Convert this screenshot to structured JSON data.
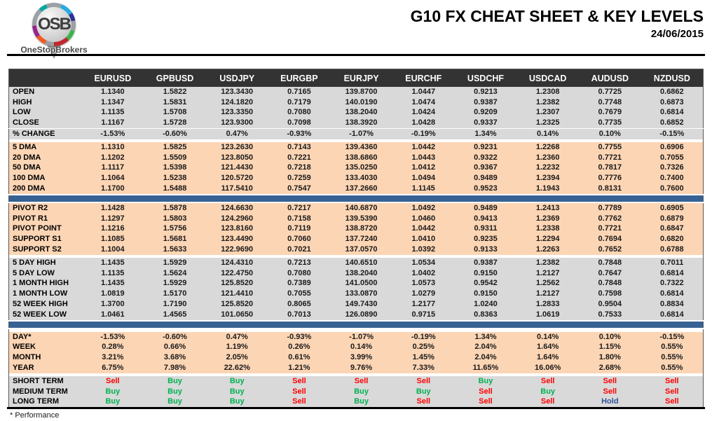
{
  "page": {
    "logo": {
      "letters": "OSB",
      "name": "OneStopBrokers"
    },
    "title": "G10 FX CHEAT SHEET & KEY LEVELS",
    "date": "24/06/2015",
    "footnote": "* Performance"
  },
  "colors": {
    "header_bg": "#333333",
    "gray_band": "#D9D9D9",
    "peach_band": "#FCD5B4",
    "blue_bar": "#376293",
    "buy": "#00B050",
    "sell": "#FF0000",
    "hold": "#2F5496",
    "pivot_r": "#00B050",
    "pivot_point": "#17375E",
    "support": "#FF0000"
  },
  "table": {
    "columns": [
      "EURUSD",
      "GPBUSD",
      "USDJPY",
      "EURGBP",
      "EURJPY",
      "EURCHF",
      "USDCHF",
      "USDCAD",
      "AUDUSD",
      "NZDUSD"
    ],
    "sections": [
      {
        "id": "daily_ohlc",
        "bg": "gray",
        "before": [],
        "rows": [
          {
            "label": "OPEN",
            "values": [
              "1.1340",
              "1.5822",
              "123.3430",
              "0.7165",
              "139.8700",
              "1.0447",
              "0.9213",
              "1.2308",
              "0.7725",
              "0.6862"
            ]
          },
          {
            "label": "HIGH",
            "values": [
              "1.1347",
              "1.5831",
              "124.1820",
              "0.7179",
              "140.0190",
              "1.0474",
              "0.9387",
              "1.2382",
              "0.7748",
              "0.6873"
            ]
          },
          {
            "label": "LOW",
            "values": [
              "1.1135",
              "1.5708",
              "123.3350",
              "0.7080",
              "138.2040",
              "1.0424",
              "0.9209",
              "1.2307",
              "0.7679",
              "0.6814"
            ]
          },
          {
            "label": "CLOSE",
            "values": [
              "1.1167",
              "1.5728",
              "123.9300",
              "0.7098",
              "138.3920",
              "1.0428",
              "0.9337",
              "1.2325",
              "0.7735",
              "0.6852"
            ]
          },
          {
            "label": "% CHANGE",
            "hairline": true,
            "values": [
              "-1.53%",
              "-0.60%",
              "0.47%",
              "-0.93%",
              "-1.07%",
              "-0.19%",
              "1.34%",
              "0.14%",
              "0.10%",
              "-0.15%"
            ]
          }
        ]
      },
      {
        "id": "moving_averages",
        "bg": "peach",
        "before": [
          "gap"
        ],
        "rows": [
          {
            "label": "5 DMA",
            "values": [
              "1.1310",
              "1.5825",
              "123.2630",
              "0.7143",
              "139.4360",
              "1.0442",
              "0.9231",
              "1.2268",
              "0.7755",
              "0.6906"
            ]
          },
          {
            "label": "20 DMA",
            "values": [
              "1.1202",
              "1.5509",
              "123.8050",
              "0.7221",
              "138.6860",
              "1.0443",
              "0.9322",
              "1.2360",
              "0.7721",
              "0.7055"
            ]
          },
          {
            "label": "50 DMA",
            "values": [
              "1.1117",
              "1.5398",
              "121.4430",
              "0.7218",
              "135.0250",
              "1.0412",
              "0.9367",
              "1.2232",
              "0.7817",
              "0.7326"
            ]
          },
          {
            "label": "100 DMA",
            "values": [
              "1.1064",
              "1.5238",
              "120.5720",
              "0.7259",
              "133.4030",
              "1.0494",
              "0.9489",
              "1.2394",
              "0.7776",
              "0.7400"
            ]
          },
          {
            "label": "200 DMA",
            "values": [
              "1.1700",
              "1.5488",
              "117.5410",
              "0.7547",
              "137.2660",
              "1.1145",
              "0.9523",
              "1.1943",
              "0.8131",
              "0.7600"
            ]
          }
        ]
      },
      {
        "id": "pivots",
        "bg": "peach",
        "before": [
          "bluebar"
        ],
        "rows": [
          {
            "label": "PIVOT R2",
            "label_color": "green",
            "values": [
              "1.1428",
              "1.5878",
              "124.6630",
              "0.7217",
              "140.6870",
              "1.0492",
              "0.9489",
              "1.2413",
              "0.7789",
              "0.6905"
            ]
          },
          {
            "label": "PIVOT R1",
            "label_color": "green",
            "values": [
              "1.1297",
              "1.5803",
              "124.2960",
              "0.7158",
              "139.5390",
              "1.0460",
              "0.9413",
              "1.2369",
              "0.7762",
              "0.6879"
            ]
          },
          {
            "label": "PIVOT POINT",
            "label_color": "navy",
            "values": [
              "1.1216",
              "1.5756",
              "123.8160",
              "0.7119",
              "138.8720",
              "1.0442",
              "0.9311",
              "1.2338",
              "0.7721",
              "0.6847"
            ]
          },
          {
            "label": "SUPPORT S1",
            "label_color": "red",
            "values": [
              "1.1085",
              "1.5681",
              "123.4490",
              "0.7060",
              "137.7240",
              "1.0410",
              "0.9235",
              "1.2294",
              "0.7694",
              "0.6820"
            ]
          },
          {
            "label": "SUPPORT S2",
            "label_color": "red",
            "values": [
              "1.1004",
              "1.5633",
              "122.9690",
              "0.7021",
              "137.0570",
              "1.0392",
              "0.9133",
              "1.2263",
              "0.7652",
              "0.6788"
            ]
          }
        ]
      },
      {
        "id": "ranges",
        "bg": "gray",
        "before": [
          "gap"
        ],
        "rows": [
          {
            "label": "5 DAY HIGH",
            "values": [
              "1.1435",
              "1.5929",
              "124.4310",
              "0.7213",
              "140.6510",
              "1.0534",
              "0.9387",
              "1.2382",
              "0.7848",
              "0.7011"
            ]
          },
          {
            "label": "5 DAY LOW",
            "values": [
              "1.1135",
              "1.5624",
              "122.4750",
              "0.7080",
              "138.2040",
              "1.0402",
              "0.9150",
              "1.2127",
              "0.7647",
              "0.6814"
            ]
          },
          {
            "label": "1 MONTH HIGH",
            "values": [
              "1.1435",
              "1.5929",
              "125.8520",
              "0.7389",
              "141.0500",
              "1.0573",
              "0.9542",
              "1.2562",
              "0.7848",
              "0.7322"
            ]
          },
          {
            "label": "1 MONTH LOW",
            "values": [
              "1.0819",
              "1.5170",
              "121.4410",
              "0.7055",
              "133.0870",
              "1.0279",
              "0.9150",
              "1.2127",
              "0.7598",
              "0.6814"
            ]
          },
          {
            "label": "52 WEEK HIGH",
            "values": [
              "1.3700",
              "1.7190",
              "125.8520",
              "0.8065",
              "149.7430",
              "1.2177",
              "1.0240",
              "1.2833",
              "0.9504",
              "0.8834"
            ]
          },
          {
            "label": "52 WEEK LOW",
            "values": [
              "1.0461",
              "1.4565",
              "101.0650",
              "0.7013",
              "126.0890",
              "0.9715",
              "0.8363",
              "1.0619",
              "0.7533",
              "0.6814"
            ]
          }
        ]
      },
      {
        "id": "performance",
        "bg": "peach",
        "before": [
          "bluebar",
          "gap"
        ],
        "rows": [
          {
            "label": "DAY*",
            "values": [
              "-1.53%",
              "-0.60%",
              "0.47%",
              "-0.93%",
              "-1.07%",
              "-0.19%",
              "1.34%",
              "0.14%",
              "0.10%",
              "-0.15%"
            ]
          },
          {
            "label": "WEEK",
            "values": [
              "0.28%",
              "0.66%",
              "1.19%",
              "0.26%",
              "0.14%",
              "0.25%",
              "2.04%",
              "1.64%",
              "1.15%",
              "0.55%"
            ]
          },
          {
            "label": "MONTH",
            "values": [
              "3.21%",
              "3.68%",
              "2.05%",
              "0.61%",
              "3.99%",
              "1.45%",
              "2.04%",
              "1.64%",
              "1.80%",
              "0.55%"
            ]
          },
          {
            "label": "YEAR",
            "values": [
              "6.75%",
              "7.98%",
              "22.62%",
              "1.21%",
              "9.76%",
              "7.33%",
              "11.65%",
              "16.06%",
              "2.68%",
              "0.55%"
            ]
          }
        ]
      },
      {
        "id": "signals",
        "bg": "gray",
        "type": "signal",
        "before": [
          "gap"
        ],
        "rows": [
          {
            "label": "SHORT TERM",
            "values": [
              "Sell",
              "Buy",
              "Buy",
              "Sell",
              "Sell",
              "Sell",
              "Buy",
              "Sell",
              "Sell",
              "Sell"
            ]
          },
          {
            "label": "MEDIUM TERM",
            "values": [
              "Buy",
              "Buy",
              "Buy",
              "Sell",
              "Buy",
              "Buy",
              "Sell",
              "Buy",
              "Sell",
              "Sell"
            ]
          },
          {
            "label": "LONG TERM",
            "values": [
              "Buy",
              "Buy",
              "Buy",
              "Sell",
              "Buy",
              "Sell",
              "Sell",
              "Sell",
              "Hold",
              "Sell"
            ]
          }
        ]
      }
    ]
  }
}
